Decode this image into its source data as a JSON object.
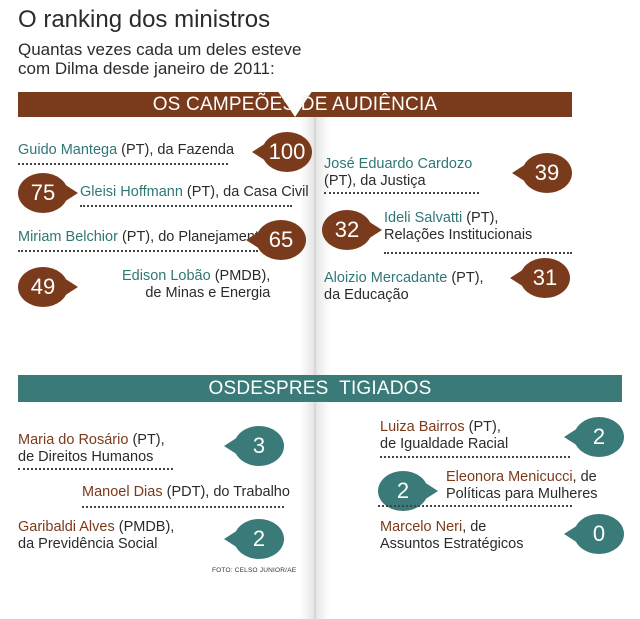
{
  "title": "O ranking dos ministros",
  "subtitle": [
    "Quantas vezes cada um deles esteve",
    "com Dilma desde janeiro de 2011:"
  ],
  "colors": {
    "brown": "#7a3b1c",
    "teal": "#3a7a78",
    "name_teal": "#2f7776",
    "name_brown": "#7c3a1b"
  },
  "credit": "FOTO: CELSO JUNIOR/AE",
  "chart_data": {
    "type": "table",
    "groups": [
      {
        "label": "OS CAMPEÕES DE AUDIÊNCIA",
        "color": "brown",
        "items": [
          {
            "name": "Guido Mantega",
            "rest1": " (PT), da Fazenda",
            "rest2": "",
            "value": 100
          },
          {
            "name": "Gleisi Hoffmann",
            "rest1": " (PT), da Casa Civil",
            "rest2": "",
            "value": 75
          },
          {
            "name": "Miriam Belchior",
            "rest1": " (PT), do Planejamento",
            "rest2": "",
            "value": 65
          },
          {
            "name": "Edison Lobão",
            "rest1": " (PMDB),",
            "rest2": "de Minas e Energia",
            "value": 49
          },
          {
            "name": "José Eduardo Cardozo",
            "rest1": "",
            "rest2": "(PT), da Justiça",
            "value": 39
          },
          {
            "name": "Ideli Salvatti",
            "rest1": " (PT),",
            "rest2": "Relações Institucionais",
            "value": 32
          },
          {
            "name": "Aloizio Mercadante",
            "rest1": " (PT),",
            "rest2": "da Educação",
            "value": 31
          }
        ]
      },
      {
        "label": "OSDESPRES  TIGIADOS",
        "color": "teal",
        "items": [
          {
            "name": "Maria do Rosário",
            "rest1": " (PT),",
            "rest2": "de Direitos Humanos",
            "value": 3
          },
          {
            "name": "Manoel Dias",
            "rest1": " (PDT), do Trabalho",
            "rest2": "",
            "value": null
          },
          {
            "name": "Garibaldi Alves",
            "rest1": " (PMDB),",
            "rest2": "da Previdência Social",
            "value": 2
          },
          {
            "name": "Luiza Bairros",
            "rest1": " (PT),",
            "rest2": "de Igualdade Racial",
            "value": 2
          },
          {
            "name": "Eleonora Menicucci",
            "rest1": ", de",
            "rest2": "Políticas para Mulheres",
            "value": 2
          },
          {
            "name": "Marcelo Neri",
            "rest1": ", de",
            "rest2": "Assuntos Estratégicos",
            "value": 0
          }
        ]
      }
    ]
  }
}
